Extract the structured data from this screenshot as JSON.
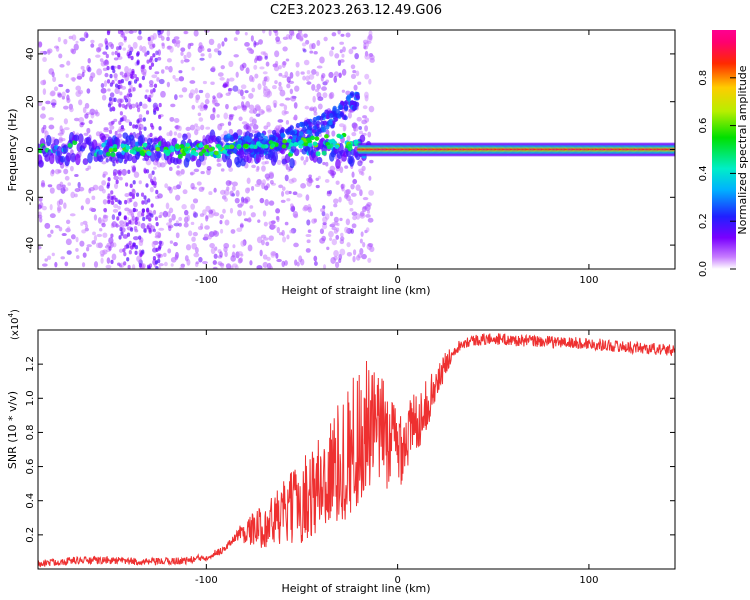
{
  "figure_title": "C2E3.2023.263.12.49.G06",
  "colors": {
    "snr_line": "#ee3030",
    "background": "#ffffff",
    "axis": "#000000"
  },
  "chart_data": [
    {
      "type": "heatmap",
      "title": "C2E3.2023.263.12.49.G06",
      "xlabel": "Height of straight line (km)",
      "ylabel": "Frequency (Hz)",
      "xlim": [
        -188,
        145
      ],
      "ylim": [
        -50,
        50
      ],
      "xticks": [
        -100,
        0,
        100
      ],
      "xtick_labels": [
        "-100",
        "0",
        "100"
      ],
      "yticks": [
        -40,
        -20,
        0,
        20,
        40
      ],
      "ytick_labels": [
        "-40",
        "-20",
        "0",
        "20",
        "40"
      ],
      "colorbar": {
        "label": "Normalized spectral amplitude",
        "range": [
          0,
          1
        ],
        "ticks": [
          0.0,
          0.2,
          0.4,
          0.6,
          0.8
        ],
        "tick_labels": [
          "0.0",
          "0.2",
          "0.4",
          "0.6",
          "0.8"
        ],
        "colormap": "rainbow (white-violet-blue-cyan-green-yellow-red-magenta)"
      },
      "features": {
        "scattered_noise_region_x": [
          -188,
          -20
        ],
        "main_band_frequency": 0,
        "rising_branch": {
          "x": [
            -90,
            -20
          ],
          "frequency": [
            2,
            25
          ]
        },
        "strong_carrier_region_x": [
          -10,
          145
        ]
      },
      "grid": false
    },
    {
      "type": "line",
      "xlabel": "Height of straight line (km)",
      "ylabel": "SNR (10 * v/v)",
      "y_scale_label": "(x10",
      "y_scale_exponent": "4",
      "xlim": [
        -188,
        145
      ],
      "ylim": [
        0,
        14000
      ],
      "xticks": [
        -100,
        0,
        100
      ],
      "xtick_labels": [
        "-100",
        "0",
        "100"
      ],
      "yticks": [
        2000,
        4000,
        6000,
        8000,
        10000,
        12000
      ],
      "ytick_labels": [
        "0.2",
        "0.4",
        "0.6",
        "0.8",
        "1.0",
        "1.2"
      ],
      "x": [
        -188,
        -170,
        -150,
        -130,
        -110,
        -100,
        -90,
        -84,
        -80,
        -70,
        -60,
        -50,
        -40,
        -30,
        -20,
        -10,
        0,
        5,
        10,
        15,
        20,
        25,
        30,
        35,
        40,
        50,
        60,
        80,
        100,
        120,
        145
      ],
      "y": [
        300,
        500,
        500,
        400,
        500,
        700,
        1200,
        2000,
        2200,
        2500,
        3200,
        4000,
        5000,
        6200,
        7800,
        8200,
        7200,
        7800,
        8600,
        9600,
        10700,
        12000,
        12900,
        13300,
        13400,
        13500,
        13400,
        13300,
        13200,
        13000,
        12800
      ],
      "grid": false
    }
  ]
}
